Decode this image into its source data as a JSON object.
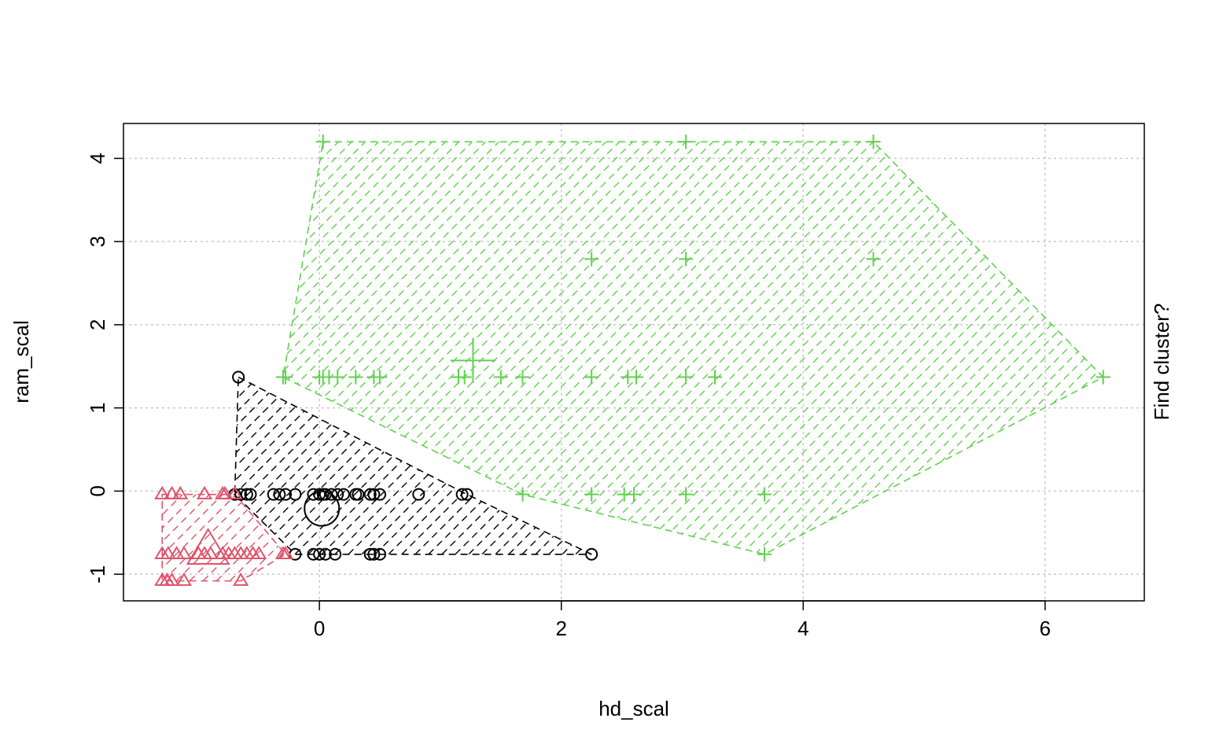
{
  "chart_data": {
    "type": "scatter",
    "title": "",
    "xlabel": "hd_scal",
    "ylabel": "ram_scal",
    "right_label": "Find cluster?",
    "xlim": [
      -1.62,
      6.82
    ],
    "ylim": [
      -1.32,
      4.42
    ],
    "x_ticks": [
      0,
      2,
      4,
      6
    ],
    "y_ticks": [
      -1,
      0,
      1,
      2,
      3,
      4
    ],
    "grid": true,
    "legend": "none",
    "series": [
      {
        "color": "#000000",
        "marker": "circle",
        "x": [
          -0.67,
          -0.7,
          -0.65,
          -0.6,
          -0.57,
          -0.38,
          -0.33,
          -0.28,
          -0.2,
          -0.05,
          0.0,
          0.03,
          0.05,
          0.1,
          0.15,
          0.2,
          0.3,
          0.32,
          0.42,
          0.45,
          0.5,
          0.82,
          1.18,
          1.22,
          -0.2,
          -0.05,
          0.0,
          0.05,
          0.13,
          0.42,
          0.45,
          0.5,
          2.25
        ],
        "y": [
          1.37,
          -0.04,
          -0.04,
          -0.04,
          -0.04,
          -0.04,
          -0.04,
          -0.04,
          -0.04,
          -0.04,
          -0.04,
          -0.04,
          -0.04,
          -0.04,
          -0.04,
          -0.04,
          -0.04,
          -0.04,
          -0.04,
          -0.04,
          -0.04,
          -0.04,
          -0.04,
          -0.04,
          -0.76,
          -0.76,
          -0.76,
          -0.76,
          -0.76,
          -0.76,
          -0.76,
          -0.76,
          -0.76
        ],
        "hull": [
          [
            -0.67,
            1.37
          ],
          [
            1.22,
            -0.04
          ],
          [
            2.25,
            -0.76
          ],
          [
            -0.2,
            -0.76
          ],
          [
            -0.7,
            -0.04
          ]
        ],
        "center": [
          0.02,
          -0.21
        ]
      },
      {
        "color": "#DF536B",
        "marker": "triangle",
        "x": [
          -1.3,
          -1.22,
          -1.15,
          -0.95,
          -0.8,
          -0.78,
          -0.7,
          -1.3,
          -1.25,
          -1.18,
          -1.12,
          -1.0,
          -0.95,
          -0.9,
          -0.8,
          -0.75,
          -0.7,
          -0.65,
          -0.6,
          -0.55,
          -0.5,
          -0.3,
          -0.28,
          -1.3,
          -1.26,
          -1.22,
          -1.12,
          -0.65
        ],
        "y": [
          -0.04,
          -0.04,
          -0.04,
          -0.04,
          -0.04,
          -0.04,
          -0.04,
          -0.76,
          -0.76,
          -0.76,
          -0.76,
          -0.76,
          -0.76,
          -0.76,
          -0.76,
          -0.76,
          -0.76,
          -0.76,
          -0.76,
          -0.76,
          -0.76,
          -0.76,
          -0.76,
          -1.08,
          -1.08,
          -1.08,
          -1.08,
          -1.08
        ],
        "hull": [
          [
            -1.3,
            -0.04
          ],
          [
            -0.7,
            -0.04
          ],
          [
            -0.28,
            -0.76
          ],
          [
            -0.65,
            -1.08
          ],
          [
            -1.3,
            -1.08
          ]
        ],
        "center": [
          -0.92,
          -0.72
        ]
      },
      {
        "color": "#61D04F",
        "marker": "plus",
        "x": [
          0.03,
          3.03,
          4.58,
          2.25,
          3.03,
          4.58,
          -0.3,
          -0.28,
          0.0,
          0.03,
          0.08,
          0.15,
          0.3,
          0.45,
          0.5,
          1.15,
          1.2,
          1.5,
          1.68,
          2.25,
          2.55,
          2.62,
          3.03,
          3.27,
          6.48,
          1.68,
          2.25,
          2.52,
          2.6,
          3.03,
          3.68,
          3.68
        ],
        "y": [
          4.2,
          4.2,
          4.2,
          2.79,
          2.79,
          2.79,
          1.37,
          1.37,
          1.37,
          1.37,
          1.37,
          1.37,
          1.37,
          1.37,
          1.37,
          1.37,
          1.37,
          1.37,
          1.37,
          1.37,
          1.37,
          1.37,
          1.37,
          1.37,
          1.37,
          -0.04,
          -0.04,
          -0.04,
          -0.04,
          -0.04,
          -0.04,
          -0.76
        ],
        "hull": [
          [
            0.03,
            4.2
          ],
          [
            4.58,
            4.2
          ],
          [
            6.48,
            1.37
          ],
          [
            3.68,
            -0.76
          ],
          [
            1.68,
            -0.04
          ],
          [
            -0.3,
            1.37
          ]
        ],
        "center": [
          1.27,
          1.57
        ]
      }
    ]
  }
}
